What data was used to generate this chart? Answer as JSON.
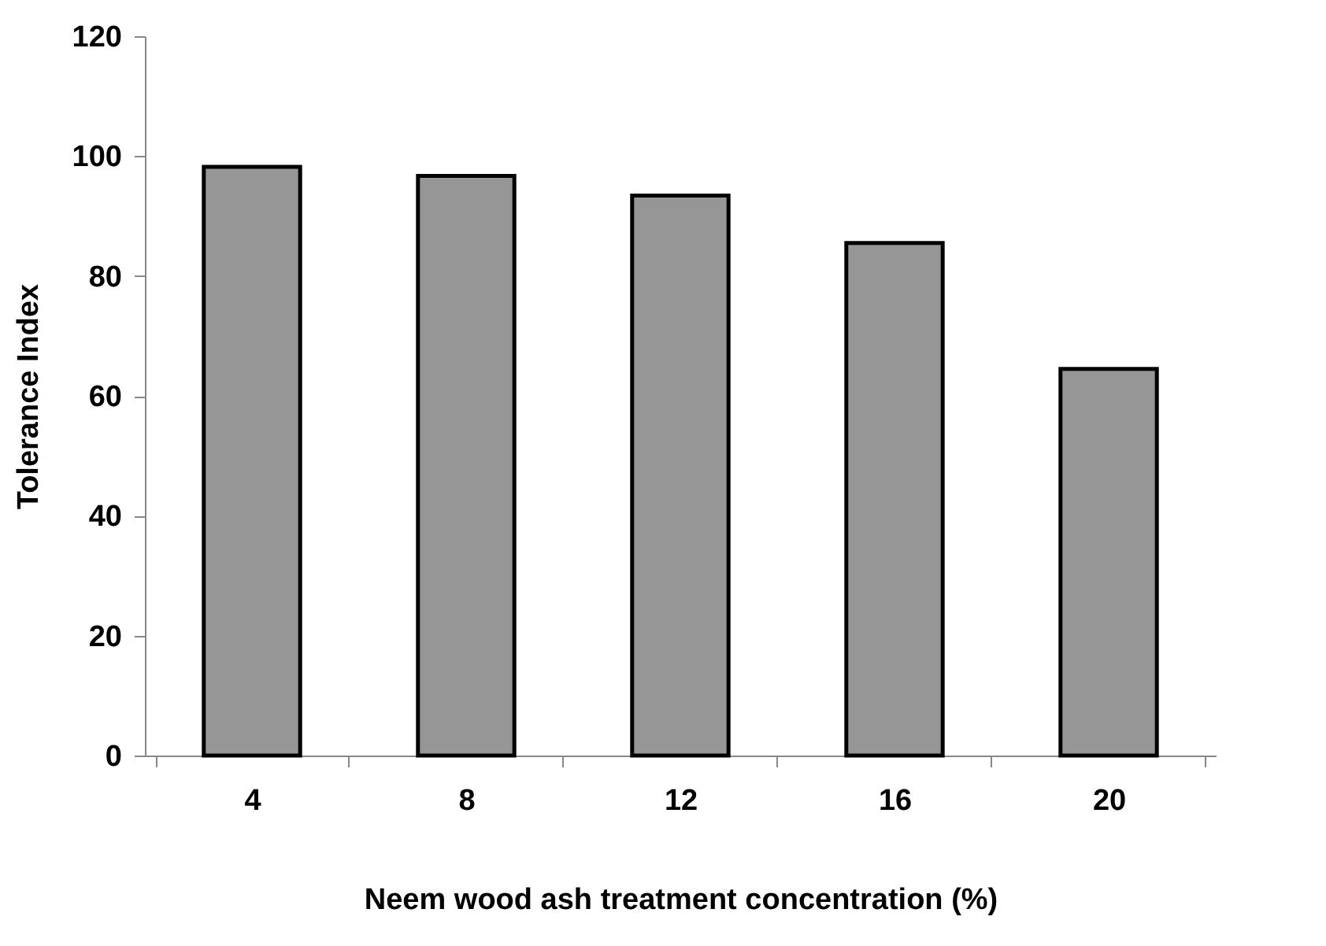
{
  "chart_data": {
    "type": "bar",
    "xlabel": "Neem wood ash treatment concentration (%)",
    "ylabel": "Tolerance Index",
    "categories": [
      "4",
      "8",
      "12",
      "16",
      "20"
    ],
    "values": [
      98.2,
      96.7,
      93.4,
      85.5,
      64.5
    ],
    "color": "#969696",
    "ylim": [
      0,
      120
    ],
    "yticks": [
      0,
      20,
      40,
      60,
      80,
      100,
      120
    ],
    "grid": false
  }
}
